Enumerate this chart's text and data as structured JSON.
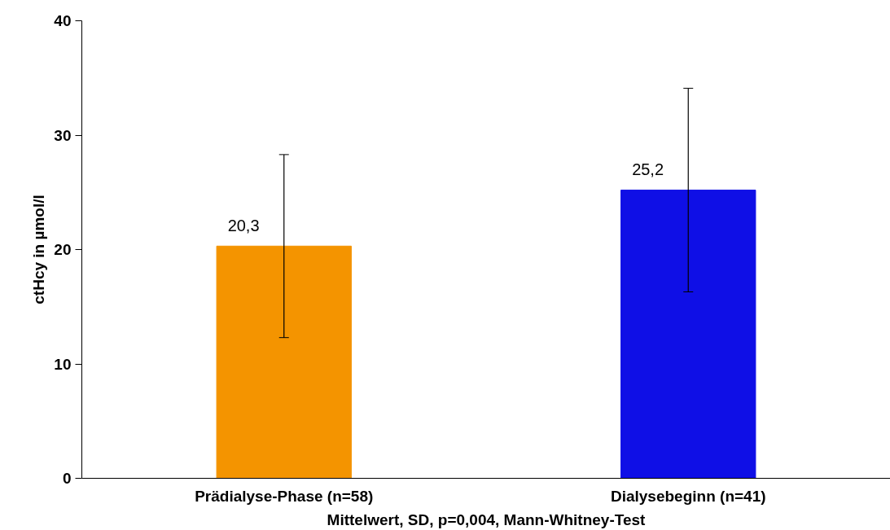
{
  "chart_data": {
    "type": "bar",
    "xlabel": "Mittelwert, SD, p=0,004, Mann-Whitney-Test",
    "ylabel": "ctHcy in µmol/l",
    "categories": [
      "Prädialyse-Phase (n=58)",
      "Dialysebeginn (n=41)"
    ],
    "values": [
      20.3,
      25.2
    ],
    "colors": [
      "#f49400",
      "#0f0fe6"
    ],
    "errors": [
      8.0,
      8.9
    ],
    "value_labels": [
      "20,3",
      "25,2"
    ],
    "ylim": [
      0,
      40
    ],
    "yticks": [
      0,
      10,
      20,
      30,
      40
    ],
    "grid": false
  }
}
